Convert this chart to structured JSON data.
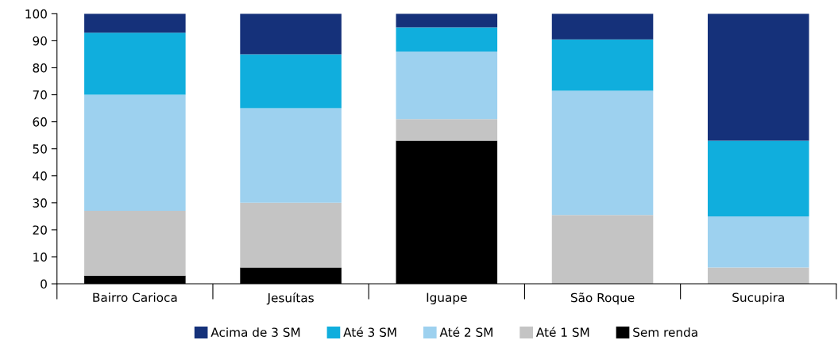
{
  "chart_data": {
    "type": "bar",
    "stacked": true,
    "categories": [
      "Bairro Carioca",
      "Jesuítas",
      "Iguape",
      "São Roque",
      "Sucupira"
    ],
    "series": [
      {
        "name": "Sem renda",
        "color": "#000000",
        "values": [
          3,
          6,
          53,
          0,
          0
        ]
      },
      {
        "name": "Até 1 SM",
        "color": "#c4c4c4",
        "values": [
          24,
          24,
          8,
          25.5,
          6
        ]
      },
      {
        "name": "Até 2 SM",
        "color": "#9dd1ef",
        "values": [
          43,
          35,
          25,
          46,
          19
        ]
      },
      {
        "name": "Até 3 SM",
        "color": "#10aedd",
        "values": [
          23,
          20,
          9,
          19,
          28
        ]
      },
      {
        "name": "Acima de 3 SM",
        "color": "#15317a",
        "values": [
          7,
          15,
          5,
          9.5,
          47
        ]
      }
    ],
    "ylim": [
      0,
      100
    ],
    "yticks": [
      0,
      10,
      20,
      30,
      40,
      50,
      60,
      70,
      80,
      90,
      100
    ],
    "grid": false,
    "legend": "bottom"
  }
}
